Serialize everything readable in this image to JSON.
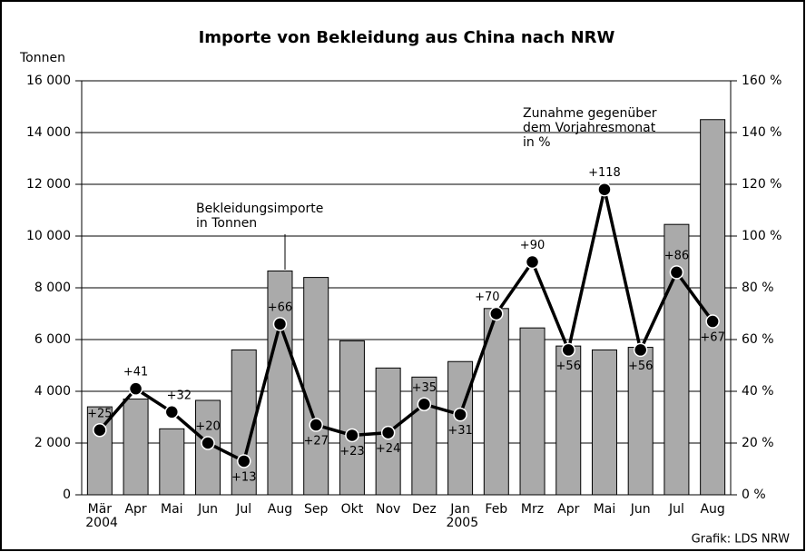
{
  "chart_data": {
    "type": "bar_line",
    "title": "Importe von Bekleidung aus China nach NRW",
    "y_axis_label": "Tonnen",
    "source": "Grafik: LDS NRW",
    "categories": [
      "Mär 2004",
      "Apr",
      "Mai",
      "Jun",
      "Jul",
      "Aug",
      "Sep",
      "Okt",
      "Nov",
      "Dez",
      "Jan 2005",
      "Feb",
      "Mrz",
      "Apr",
      "Mai",
      "Jun",
      "Jul",
      "Aug"
    ],
    "series": [
      {
        "name": "Bekleidungsimporte in Tonnen",
        "type": "bar",
        "color": "#aaaaaa",
        "values": [
          3400,
          3700,
          2550,
          3650,
          5600,
          8650,
          8400,
          5950,
          4900,
          4550,
          5150,
          7200,
          6450,
          5750,
          5600,
          5700,
          10450,
          14500
        ]
      },
      {
        "name": "Zunahme gegenüber dem Vorjahresmonat in %",
        "type": "line",
        "axis": "y2",
        "color": "#000000",
        "values": [
          25,
          41,
          32,
          20,
          13,
          66,
          27,
          23,
          24,
          35,
          31,
          70,
          90,
          56,
          118,
          56,
          86,
          67
        ],
        "value_labels": [
          "+25",
          "+41",
          "+32",
          "+20",
          "+13",
          "+66",
          "+27",
          "+23",
          "+24",
          "+35",
          "+31",
          "+70",
          "+90",
          "+56",
          "+118",
          "+56",
          "+86",
          "+67"
        ]
      }
    ],
    "annotations": [
      {
        "lines": [
          "Bekleidungsimporte",
          "in Tonnen"
        ]
      },
      {
        "lines": [
          "Zunahme gegenüber",
          "dem Vorjahresmonat",
          "in %"
        ]
      }
    ],
    "ylim": [
      0,
      16000
    ],
    "yticks": [
      0,
      {
        "value": 2000,
        "label": "2 000"
      },
      {
        "value": 4000,
        "label": "4 000"
      },
      {
        "value": 6000,
        "label": "6 000"
      },
      {
        "value": 8000,
        "label": "8 000"
      },
      {
        "value": 10000,
        "label": "10 000"
      },
      {
        "value": 12000,
        "label": "12 000"
      },
      {
        "value": 14000,
        "label": "14 000"
      },
      {
        "value": 16000,
        "label": "16 000"
      }
    ],
    "y2lim": [
      0,
      160
    ],
    "y2ticks": [
      {
        "value": 0,
        "label": "0 %"
      },
      {
        "value": 20,
        "label": "20 %"
      },
      {
        "value": 40,
        "label": "40 %"
      },
      {
        "value": 60,
        "label": "60 %"
      },
      {
        "value": 80,
        "label": "80 %"
      },
      {
        "value": 100,
        "label": "100 %"
      },
      {
        "value": 120,
        "label": "120 %"
      },
      {
        "value": 140,
        "label": "140 %"
      },
      {
        "value": 160,
        "label": "160 %"
      }
    ],
    "grid": true
  }
}
